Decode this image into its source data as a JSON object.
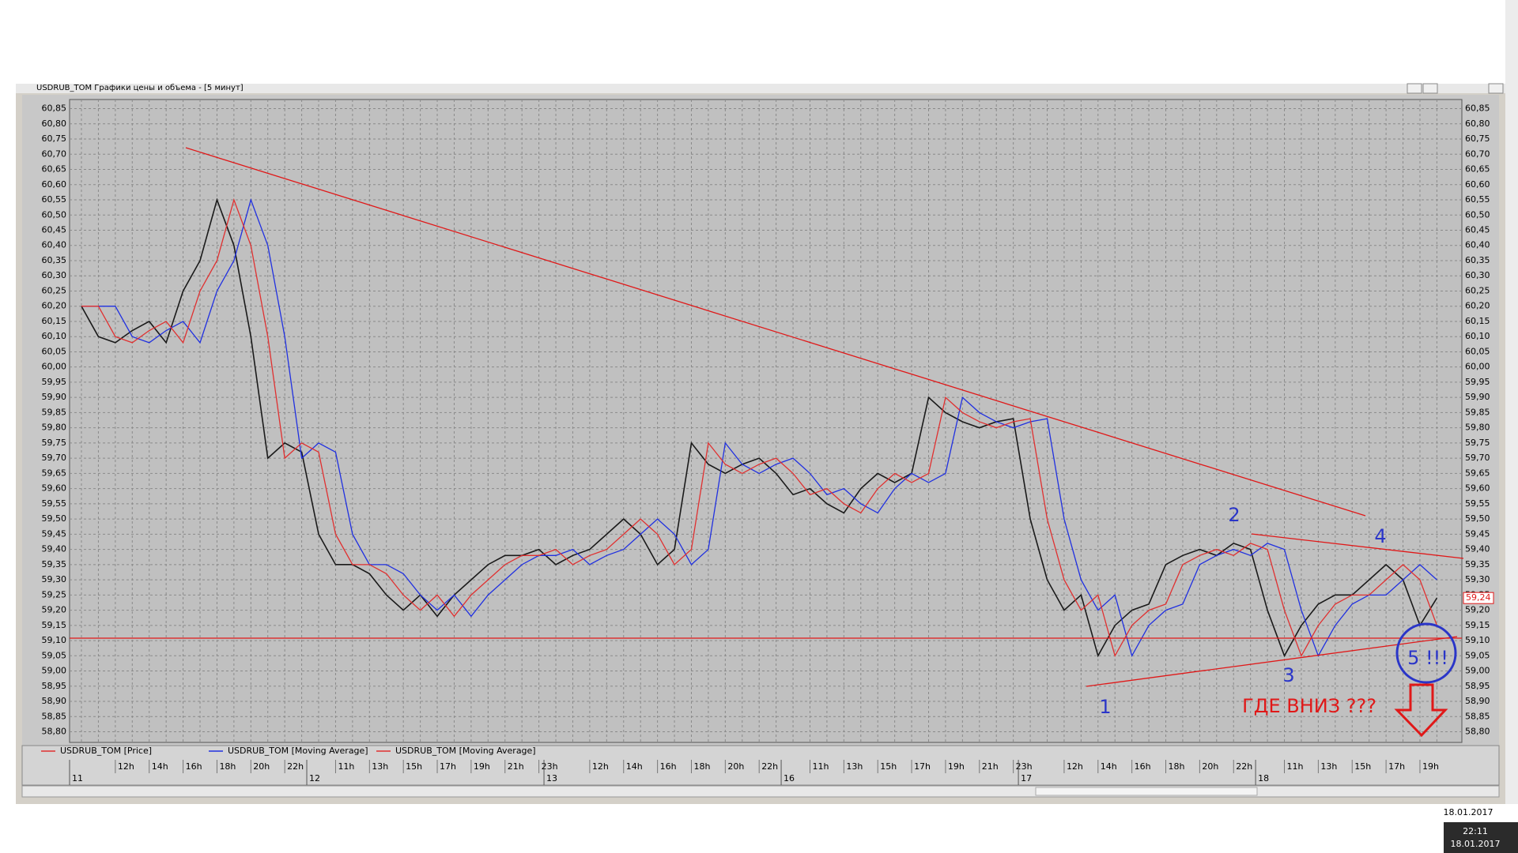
{
  "chart_data": {
    "type": "line",
    "title": "USDRUB_TOM Графики цены и объема - [5 минут]",
    "categories": [
      null,
      null,
      "12h",
      null,
      "14h",
      null,
      "16h",
      null,
      "18h",
      null,
      "20h",
      null,
      "22h",
      null,
      null,
      "11h",
      null,
      "13h",
      null,
      "15h",
      null,
      "17h",
      null,
      "19h",
      null,
      "21h",
      null,
      "23h",
      null,
      null,
      "12h",
      null,
      "14h",
      null,
      "16h",
      null,
      "18h",
      null,
      "20h",
      null,
      "22h",
      null,
      null,
      "11h",
      null,
      "13h",
      null,
      "15h",
      null,
      "17h",
      null,
      "19h",
      null,
      "21h",
      null,
      "23h",
      null,
      null,
      "12h",
      null,
      "14h",
      null,
      "16h",
      null,
      "18h",
      null,
      "20h",
      null,
      "22h",
      null,
      null,
      "11h",
      null,
      "13h",
      null,
      "15h",
      null,
      "17h",
      null,
      "19h",
      null
    ],
    "day_categories": [
      "11",
      null,
      null,
      null,
      null,
      null,
      null,
      null,
      null,
      null,
      null,
      null,
      null,
      null,
      "12",
      null,
      null,
      null,
      null,
      null,
      null,
      null,
      null,
      null,
      null,
      null,
      null,
      null,
      "13",
      null,
      null,
      null,
      null,
      null,
      null,
      null,
      null,
      null,
      null,
      null,
      null,
      null,
      "16",
      null,
      null,
      null,
      null,
      null,
      null,
      null,
      null,
      null,
      null,
      null,
      null,
      null,
      "17",
      null,
      null,
      null,
      null,
      null,
      null,
      null,
      null,
      null,
      null,
      null,
      null,
      null,
      "18",
      null,
      null,
      null,
      null,
      null,
      null,
      null,
      null,
      null,
      null
    ],
    "series": [
      {
        "name": "USDRUB_TOM [Price]",
        "color": "#1a1a1a",
        "values": [
          60.2,
          60.1,
          60.08,
          60.12,
          60.15,
          60.08,
          60.25,
          60.35,
          60.55,
          60.4,
          60.1,
          59.7,
          59.75,
          59.72,
          59.45,
          59.35,
          59.35,
          59.32,
          59.25,
          59.2,
          59.25,
          59.18,
          59.25,
          59.3,
          59.35,
          59.38,
          59.38,
          59.4,
          59.35,
          59.38,
          59.4,
          59.45,
          59.5,
          59.45,
          59.35,
          59.4,
          59.75,
          59.68,
          59.65,
          59.68,
          59.7,
          59.65,
          59.58,
          59.6,
          59.55,
          59.52,
          59.6,
          59.65,
          59.62,
          59.65,
          59.9,
          59.85,
          59.82,
          59.8,
          59.82,
          59.83,
          59.5,
          59.3,
          59.2,
          59.25,
          59.05,
          59.15,
          59.2,
          59.22,
          59.35,
          59.38,
          59.4,
          59.38,
          59.42,
          59.4,
          59.2,
          59.05,
          59.15,
          59.22,
          59.25,
          59.25,
          59.3,
          59.35,
          59.3,
          59.15,
          59.24
        ],
        "value_labels": [
          null,
          null,
          null,
          null,
          null,
          null,
          null,
          null,
          null,
          null,
          null,
          null,
          null,
          null,
          null,
          null,
          null,
          null,
          null,
          null,
          null,
          null,
          null,
          null,
          null,
          null,
          null,
          null,
          null,
          null,
          null,
          null,
          null,
          null,
          null,
          null,
          null,
          null,
          null,
          null,
          null,
          null,
          null,
          null,
          null,
          null,
          null,
          null,
          null,
          null,
          null,
          null,
          null,
          null,
          null,
          null,
          null,
          null,
          null,
          null,
          null,
          null,
          null,
          null,
          null,
          null,
          null,
          null,
          null,
          null,
          null,
          null,
          null,
          null,
          null,
          null,
          null,
          null,
          null,
          null,
          "59,24"
        ]
      },
      {
        "name": "USDRUB_TOM [Moving Average]",
        "color": "#2030e0",
        "values": [
          60.2,
          60.2,
          60.2,
          60.1,
          60.08,
          60.12,
          60.15,
          60.08,
          60.25,
          60.35,
          60.55,
          60.4,
          60.1,
          59.7,
          59.75,
          59.72,
          59.45,
          59.35,
          59.35,
          59.32,
          59.25,
          59.2,
          59.25,
          59.18,
          59.25,
          59.3,
          59.35,
          59.38,
          59.38,
          59.4,
          59.35,
          59.38,
          59.4,
          59.45,
          59.5,
          59.45,
          59.35,
          59.4,
          59.75,
          59.68,
          59.65,
          59.68,
          59.7,
          59.65,
          59.58,
          59.6,
          59.55,
          59.52,
          59.6,
          59.65,
          59.62,
          59.65,
          59.9,
          59.85,
          59.82,
          59.8,
          59.82,
          59.83,
          59.5,
          59.3,
          59.2,
          59.25,
          59.05,
          59.15,
          59.2,
          59.22,
          59.35,
          59.38,
          59.4,
          59.38,
          59.42,
          59.4,
          59.2,
          59.05,
          59.15,
          59.22,
          59.25,
          59.25,
          59.3,
          59.35,
          59.3
        ]
      },
      {
        "name": "USDRUB_TOM [Moving Average]",
        "color": "#e03030",
        "values": [
          60.2,
          60.2,
          60.1,
          60.08,
          60.12,
          60.15,
          60.08,
          60.25,
          60.35,
          60.55,
          60.4,
          60.1,
          59.7,
          59.75,
          59.72,
          59.45,
          59.35,
          59.35,
          59.32,
          59.25,
          59.2,
          59.25,
          59.18,
          59.25,
          59.3,
          59.35,
          59.38,
          59.38,
          59.4,
          59.35,
          59.38,
          59.4,
          59.45,
          59.5,
          59.45,
          59.35,
          59.4,
          59.75,
          59.68,
          59.65,
          59.68,
          59.7,
          59.65,
          59.58,
          59.6,
          59.55,
          59.52,
          59.6,
          59.65,
          59.62,
          59.65,
          59.9,
          59.85,
          59.82,
          59.8,
          59.82,
          59.83,
          59.5,
          59.3,
          59.2,
          59.25,
          59.05,
          59.15,
          59.2,
          59.22,
          59.35,
          59.38,
          59.4,
          59.38,
          59.42,
          59.4,
          59.2,
          59.05,
          59.15,
          59.22,
          59.25,
          59.25,
          59.3,
          59.35,
          59.3,
          59.15
        ]
      }
    ],
    "ylim": [
      58.765,
      60.88
    ],
    "yticks": [
      {
        "value": 58.8,
        "label": "58,80"
      },
      {
        "value": 58.85,
        "label": "58,85"
      },
      {
        "value": 58.9,
        "label": "58,90"
      },
      {
        "value": 58.95,
        "label": "58,95"
      },
      {
        "value": 59.0,
        "label": "59,00"
      },
      {
        "value": 59.05,
        "label": "59,05"
      },
      {
        "value": 59.1,
        "label": "59,10"
      },
      {
        "value": 59.15,
        "label": "59,15"
      },
      {
        "value": 59.2,
        "label": "59,20"
      },
      {
        "value": 59.25,
        "label": "59,25"
      },
      {
        "value": 59.3,
        "label": "59,30"
      },
      {
        "value": 59.35,
        "label": "59,35"
      },
      {
        "value": 59.4,
        "label": "59,40"
      },
      {
        "value": 59.45,
        "label": "59,45"
      },
      {
        "value": 59.5,
        "label": "59,50"
      },
      {
        "value": 59.55,
        "label": "59,55"
      },
      {
        "value": 59.6,
        "label": "59,60"
      },
      {
        "value": 59.65,
        "label": "59,65"
      },
      {
        "value": 59.7,
        "label": "59,70"
      },
      {
        "value": 59.75,
        "label": "59,75"
      },
      {
        "value": 59.8,
        "label": "59,80"
      },
      {
        "value": 59.85,
        "label": "59,85"
      },
      {
        "value": 59.9,
        "label": "59,90"
      },
      {
        "value": 59.95,
        "label": "59,95"
      },
      {
        "value": 60.0,
        "label": "60,00"
      },
      {
        "value": 60.05,
        "label": "60,05"
      },
      {
        "value": 60.1,
        "label": "60,10"
      },
      {
        "value": 60.15,
        "label": "60,15"
      },
      {
        "value": 60.2,
        "label": "60,20"
      },
      {
        "value": 60.25,
        "label": "60,25"
      },
      {
        "value": 60.3,
        "label": "60,30"
      },
      {
        "value": 60.35,
        "label": "60,35"
      },
      {
        "value": 60.4,
        "label": "60,40"
      },
      {
        "value": 60.45,
        "label": "60,45"
      },
      {
        "value": 60.5,
        "label": "60,50"
      },
      {
        "value": 60.55,
        "label": "60,55"
      },
      {
        "value": 60.6,
        "label": "60,60"
      },
      {
        "value": 60.65,
        "label": "60,65"
      },
      {
        "value": 60.7,
        "label": "60,70"
      },
      {
        "value": 60.75,
        "label": "60,75"
      },
      {
        "value": 60.8,
        "label": "60,80"
      },
      {
        "value": 60.85,
        "label": "60,85"
      }
    ],
    "grid": true,
    "annotations": [
      "1",
      "2",
      "3",
      "4",
      "5 !!!",
      "ГДЕ ВНИЗ ???"
    ],
    "status_date": "18.01.2017",
    "clock_time": "22:11",
    "clock_date": "18.01.2017"
  }
}
